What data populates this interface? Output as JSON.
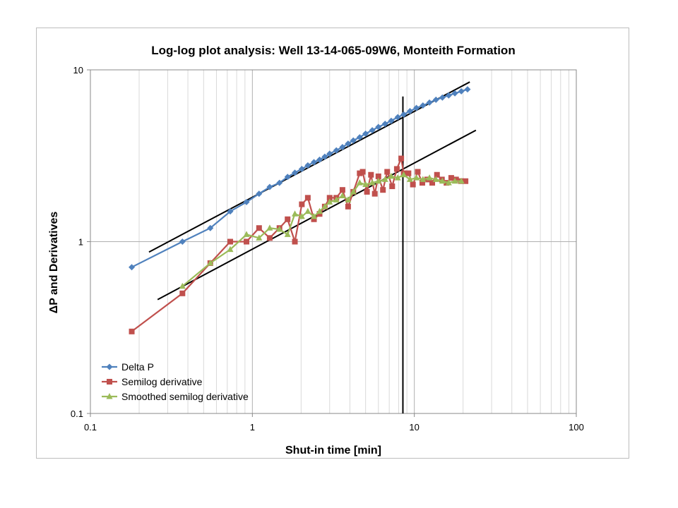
{
  "chart_data": {
    "type": "line",
    "title": "Log-log plot analysis: Well 13-14-065-09W6, Monteith Formation",
    "xlabel": "Shut-in time [min]",
    "ylabel": "ΔP and Derivatives",
    "x_scale": "log",
    "y_scale": "log",
    "xlim": [
      0.1,
      100
    ],
    "ylim": [
      0.1,
      10
    ],
    "x_ticks": [
      "0.1",
      "1",
      "10",
      "100"
    ],
    "y_ticks": [
      "0.1",
      "1",
      "10"
    ],
    "grid": true,
    "legend_position": "bottom-left",
    "series": [
      {
        "name": "Delta P",
        "color": "#4f81bd",
        "marker": "diamond",
        "x": [
          0.18,
          0.37,
          0.55,
          0.73,
          0.92,
          1.1,
          1.28,
          1.47,
          1.65,
          1.83,
          2.02,
          2.2,
          2.4,
          2.6,
          2.8,
          3.0,
          3.3,
          3.6,
          3.9,
          4.2,
          4.6,
          5.0,
          5.5,
          6.0,
          6.6,
          7.2,
          7.9,
          8.6,
          9.4,
          10.3,
          11.3,
          12.4,
          13.6,
          14.9,
          16.3,
          17.8,
          19.5,
          21.3
        ],
        "y": [
          0.71,
          1.0,
          1.2,
          1.5,
          1.7,
          1.9,
          2.08,
          2.2,
          2.38,
          2.52,
          2.65,
          2.78,
          2.9,
          3.0,
          3.12,
          3.25,
          3.4,
          3.55,
          3.72,
          3.88,
          4.05,
          4.25,
          4.45,
          4.65,
          4.85,
          5.05,
          5.3,
          5.5,
          5.75,
          6.0,
          6.2,
          6.45,
          6.7,
          6.9,
          7.1,
          7.3,
          7.5,
          7.7
        ]
      },
      {
        "name": "Semilog derivative",
        "color": "#c0504d",
        "marker": "square",
        "x": [
          0.18,
          0.37,
          0.55,
          0.73,
          0.92,
          1.1,
          1.28,
          1.47,
          1.65,
          1.83,
          2.02,
          2.2,
          2.4,
          2.6,
          2.8,
          3.0,
          3.3,
          3.6,
          3.9,
          4.2,
          4.6,
          4.8,
          5.1,
          5.4,
          5.7,
          6.0,
          6.4,
          6.8,
          7.3,
          7.8,
          8.3,
          8.6,
          9.2,
          9.8,
          10.5,
          11.2,
          12.0,
          12.9,
          13.8,
          14.8,
          15.8,
          16.9,
          18.1,
          19.4,
          20.7
        ],
        "y": [
          0.3,
          0.5,
          0.75,
          1.0,
          1.0,
          1.2,
          1.05,
          1.2,
          1.35,
          1.0,
          1.65,
          1.8,
          1.35,
          1.45,
          1.6,
          1.8,
          1.8,
          2.0,
          1.6,
          1.95,
          2.5,
          2.55,
          1.95,
          2.45,
          1.9,
          2.4,
          2.0,
          2.55,
          2.1,
          2.65,
          3.05,
          2.5,
          2.5,
          2.15,
          2.55,
          2.2,
          2.3,
          2.2,
          2.45,
          2.3,
          2.2,
          2.35,
          2.3,
          2.25,
          2.25
        ]
      },
      {
        "name": "Smoothed semilog derivative",
        "color": "#9bbb59",
        "marker": "triangle",
        "x": [
          0.37,
          0.55,
          0.73,
          0.92,
          1.1,
          1.28,
          1.47,
          1.65,
          1.83,
          2.02,
          2.2,
          2.4,
          2.6,
          2.8,
          3.0,
          3.3,
          3.6,
          3.9,
          4.2,
          4.6,
          5.0,
          5.5,
          6.0,
          6.6,
          7.2,
          7.9,
          8.6,
          9.4,
          10.3,
          11.3,
          12.4,
          13.6,
          14.9,
          16.3,
          17.8,
          19.5
        ],
        "y": [
          0.55,
          0.75,
          0.9,
          1.1,
          1.05,
          1.2,
          1.18,
          1.1,
          1.45,
          1.4,
          1.5,
          1.4,
          1.5,
          1.6,
          1.7,
          1.75,
          1.85,
          1.75,
          1.95,
          2.2,
          2.15,
          2.2,
          2.25,
          2.3,
          2.4,
          2.35,
          2.45,
          2.3,
          2.35,
          2.3,
          2.35,
          2.3,
          2.25,
          2.2,
          2.25,
          2.25
        ]
      }
    ],
    "reference_lines": [
      {
        "x": [
          0.23,
          22.0
        ],
        "y": [
          0.87,
          8.5
        ]
      },
      {
        "x": [
          0.26,
          24.0
        ],
        "y": [
          0.46,
          4.45
        ]
      },
      {
        "x": [
          8.5,
          8.5
        ],
        "y": [
          0.1,
          7.0
        ]
      }
    ]
  }
}
